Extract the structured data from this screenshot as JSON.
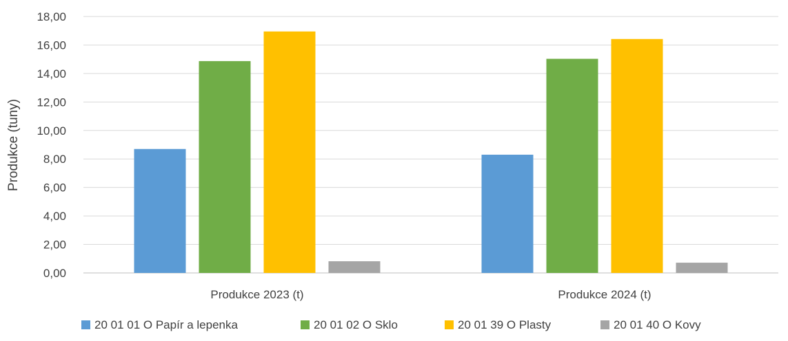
{
  "chart_data": {
    "type": "bar",
    "title": "",
    "xlabel": "",
    "ylabel": "Produkce (tuny)",
    "ylim": [
      0,
      18
    ],
    "yticks": [
      "0,00",
      "2,00",
      "4,00",
      "6,00",
      "8,00",
      "10,00",
      "12,00",
      "14,00",
      "16,00",
      "18,00"
    ],
    "ytick_values": [
      0,
      2,
      4,
      6,
      8,
      10,
      12,
      14,
      16,
      18
    ],
    "grid": true,
    "legend_position": "bottom",
    "categories": [
      "Produkce 2023 (t)",
      "Produkce 2024 (t)"
    ],
    "series": [
      {
        "name": "20 01 01 O Papír a lepenka",
        "color": "#5b9bd5",
        "values": [
          8.7,
          8.3
        ]
      },
      {
        "name": "20 01 02 O Sklo",
        "color": "#70ad47",
        "values": [
          14.87,
          15.03
        ]
      },
      {
        "name": "20 01 39 O Plasty",
        "color": "#ffc000",
        "values": [
          16.95,
          16.42
        ]
      },
      {
        "name": "20 01 40 O Kovy",
        "color": "#a5a5a5",
        "values": [
          0.82,
          0.72
        ]
      }
    ]
  }
}
